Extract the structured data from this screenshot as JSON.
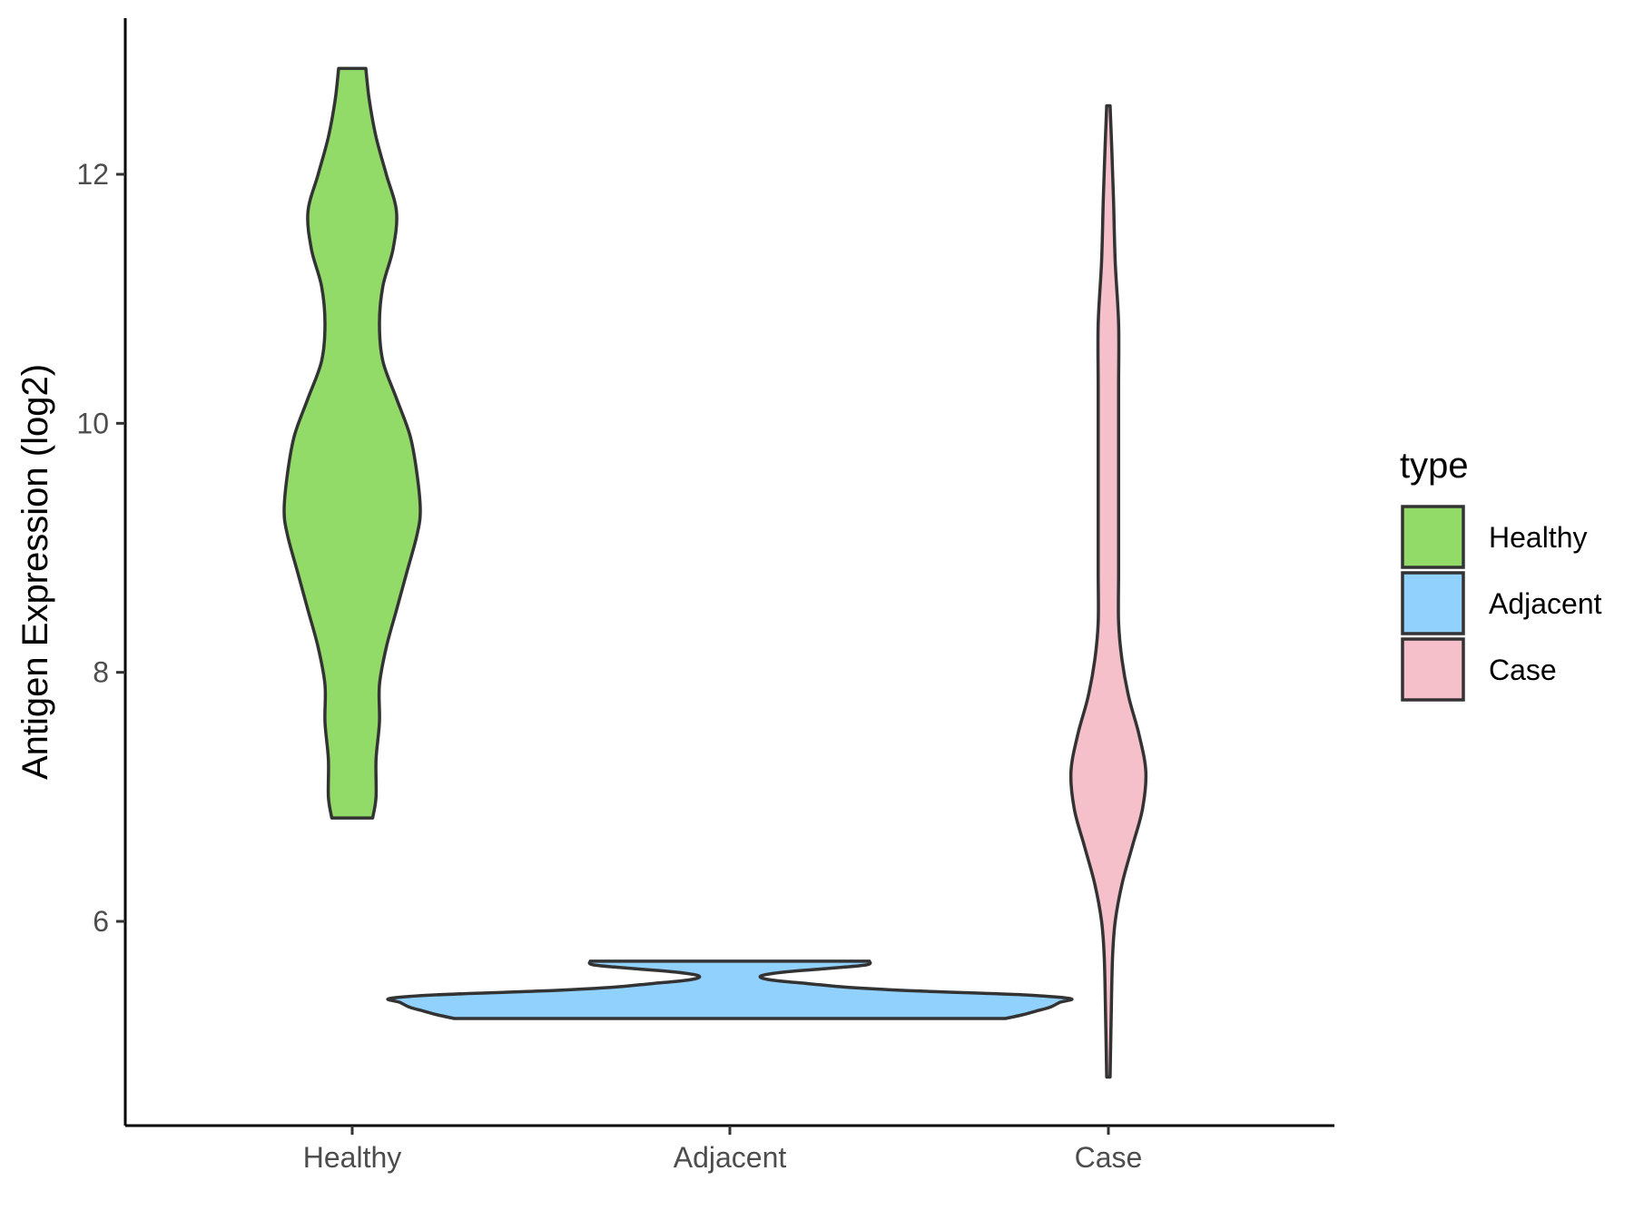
{
  "chart_data": {
    "type": "violin",
    "title": "",
    "xlabel": "",
    "ylabel": "Antigen Expression (log2)",
    "ylim": [
      4.65,
      13.3
    ],
    "yticks": [
      6,
      8,
      10,
      12
    ],
    "categories": [
      "Healthy",
      "Adjacent",
      "Case"
    ],
    "grid": false,
    "legend": {
      "title": "type",
      "position": "right",
      "entries": [
        "Healthy",
        "Adjacent",
        "Case"
      ]
    },
    "series": [
      {
        "name": "Healthy",
        "color": "#93db69",
        "min": 6.83,
        "max": 12.85,
        "density": [
          [
            6.83,
            0.06
          ],
          [
            7.0,
            0.07
          ],
          [
            7.3,
            0.07
          ],
          [
            7.6,
            0.08
          ],
          [
            7.9,
            0.08
          ],
          [
            8.2,
            0.1
          ],
          [
            8.5,
            0.13
          ],
          [
            8.8,
            0.16
          ],
          [
            9.1,
            0.19
          ],
          [
            9.3,
            0.2
          ],
          [
            9.6,
            0.19
          ],
          [
            9.9,
            0.17
          ],
          [
            10.2,
            0.13
          ],
          [
            10.5,
            0.09
          ],
          [
            10.8,
            0.08
          ],
          [
            11.1,
            0.09
          ],
          [
            11.4,
            0.12
          ],
          [
            11.7,
            0.13
          ],
          [
            12.0,
            0.1
          ],
          [
            12.3,
            0.07
          ],
          [
            12.6,
            0.05
          ],
          [
            12.85,
            0.04
          ]
        ]
      },
      {
        "name": "Adjacent",
        "color": "#91d1fe",
        "min": 5.22,
        "max": 5.68,
        "density": [
          [
            5.22,
            0.81
          ],
          [
            5.25,
            0.86
          ],
          [
            5.28,
            0.9
          ],
          [
            5.31,
            0.94
          ],
          [
            5.35,
            0.97
          ],
          [
            5.38,
            1.0
          ],
          [
            5.41,
            0.86
          ],
          [
            5.44,
            0.56
          ],
          [
            5.47,
            0.35
          ],
          [
            5.5,
            0.23
          ],
          [
            5.53,
            0.12
          ],
          [
            5.56,
            0.09
          ],
          [
            5.59,
            0.15
          ],
          [
            5.62,
            0.28
          ],
          [
            5.65,
            0.4
          ],
          [
            5.68,
            0.41
          ]
        ]
      },
      {
        "name": "Case",
        "color": "#f6c0cb",
        "min": 4.75,
        "max": 12.55,
        "density": [
          [
            4.75,
            0.005
          ],
          [
            5.2,
            0.008
          ],
          [
            5.7,
            0.012
          ],
          [
            6.0,
            0.02
          ],
          [
            6.3,
            0.04
          ],
          [
            6.6,
            0.07
          ],
          [
            6.9,
            0.1
          ],
          [
            7.2,
            0.11
          ],
          [
            7.5,
            0.09
          ],
          [
            7.8,
            0.06
          ],
          [
            8.1,
            0.04
          ],
          [
            8.4,
            0.03
          ],
          [
            8.8,
            0.03
          ],
          [
            9.3,
            0.03
          ],
          [
            9.8,
            0.03
          ],
          [
            10.3,
            0.03
          ],
          [
            10.8,
            0.03
          ],
          [
            11.3,
            0.02
          ],
          [
            11.8,
            0.015
          ],
          [
            12.2,
            0.01
          ],
          [
            12.55,
            0.005
          ]
        ]
      }
    ]
  }
}
